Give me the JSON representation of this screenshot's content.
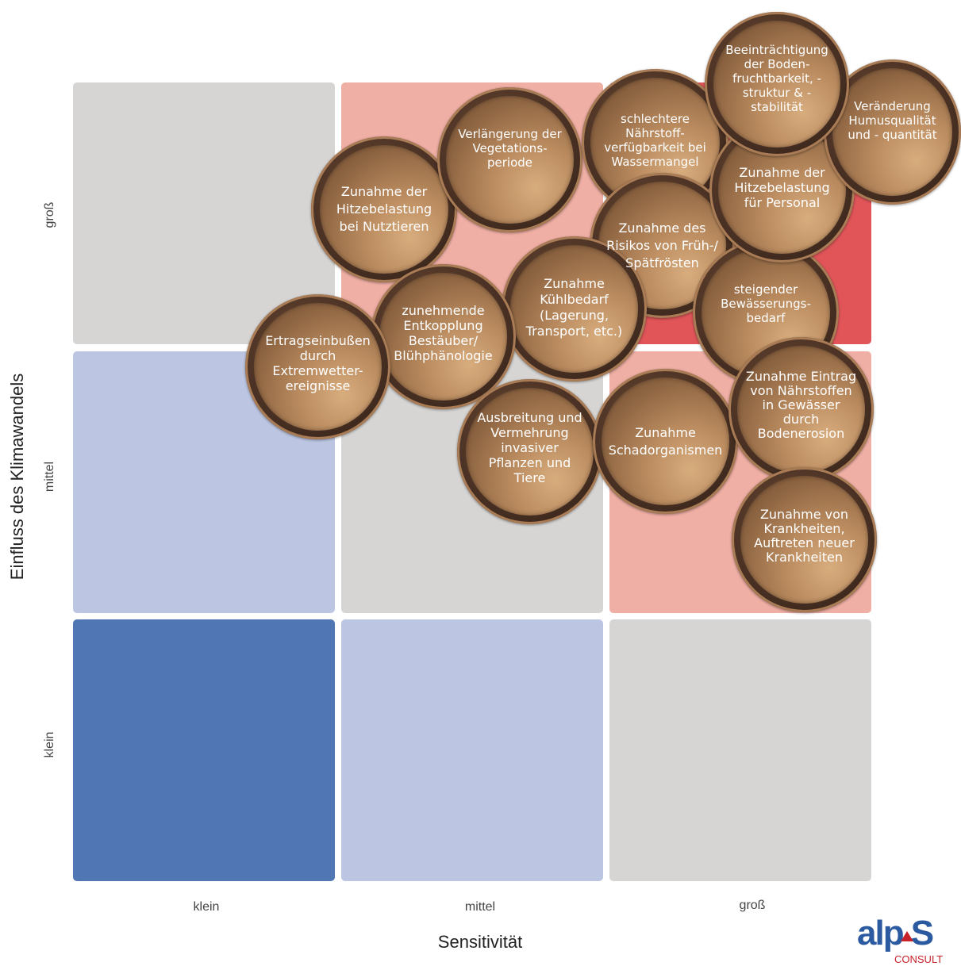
{
  "axes": {
    "x_title": "Sensitivität",
    "y_title": "Einfluss des Klimawandels",
    "x_ticks": [
      "klein",
      "mittel",
      "groß"
    ],
    "y_ticks": [
      "groß",
      "mittel",
      "klein"
    ]
  },
  "matrix": {
    "colors": {
      "dark_blue": "#5077b3",
      "light_blue": "#bcc6e2",
      "gray": "#d6d5d4",
      "light_red": "#f0afa5",
      "red": "#e15559"
    },
    "rows": [
      [
        "gray",
        "light_red",
        "red"
      ],
      [
        "light_blue",
        "gray",
        "light_red"
      ],
      [
        "dark_blue",
        "light_blue",
        "gray"
      ]
    ]
  },
  "bubbles": [
    {
      "id": "hitze-nutztiere",
      "label": "Zunahme der Hitzebelastung bei Nutztieren"
    },
    {
      "id": "vegetationsperiode",
      "label": "Verlängerung der Vegetations-periode"
    },
    {
      "id": "naehrstoff",
      "label": "schlechtere Nährstoff-verfügbarkeit bei Wassermangel"
    },
    {
      "id": "boden",
      "label": "Beeinträchtigung der Boden-fruchtbarkeit, -struktur & -stabilität"
    },
    {
      "id": "humus",
      "label": "Veränderung Humusqualität und - quantität"
    },
    {
      "id": "hitze-personal",
      "label": "Zunahme der Hitzebelastung für Personal"
    },
    {
      "id": "fruehfrost",
      "label": "Zunahme des Risikos von Früh-/ Spätfrösten"
    },
    {
      "id": "bewaesserung",
      "label": "steigender Bewässerungs-bedarf"
    },
    {
      "id": "kuehlbedarf",
      "label": "Zunahme Kühlbedarf (Lagerung, Transport, etc.)"
    },
    {
      "id": "bestaeuber",
      "label": "zunehmende Entkopplung Bestäuber/ Blühphänologie"
    },
    {
      "id": "extremwetter",
      "label": "Ertragseinbußen durch Extremwetter-ereignisse"
    },
    {
      "id": "invasive",
      "label": "Ausbreitung und Vermehrung invasiver Pflanzen und Tiere"
    },
    {
      "id": "schadorganismen",
      "label": "Zunahme Schadorganismen"
    },
    {
      "id": "erosion",
      "label": "Zunahme Eintrag von Nährstoffen in Gewässer durch Bodenerosion"
    },
    {
      "id": "krankheiten",
      "label": "Zunahme von Krankheiten, Auftreten neuer Krankheiten"
    }
  ],
  "logo": {
    "text": "alp S",
    "sub": "CONSULT"
  }
}
